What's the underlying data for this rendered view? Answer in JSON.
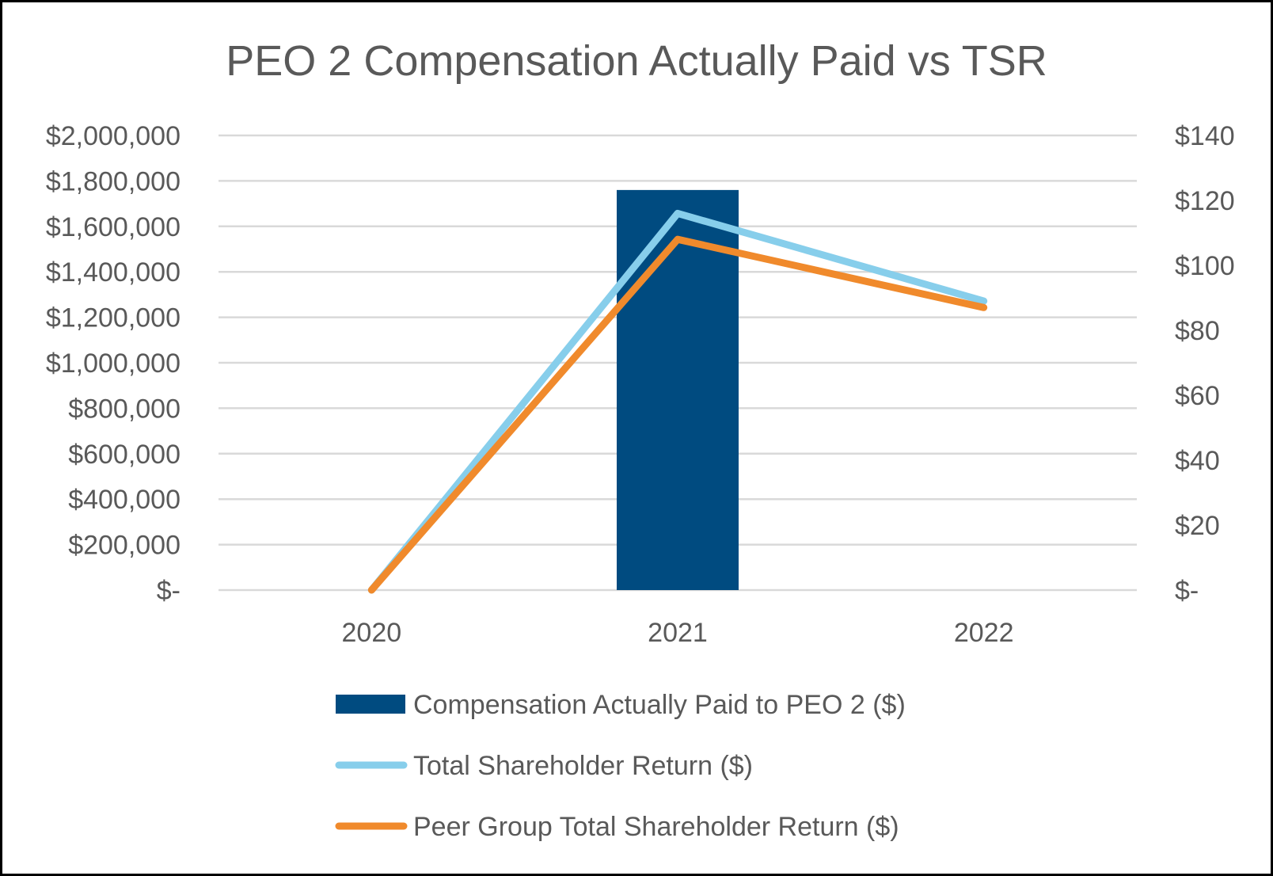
{
  "chart_data": {
    "type": "bar",
    "title": "PEO 2 Compensation Actually Paid  vs TSR",
    "categories": [
      "2020",
      "2021",
      "2022"
    ],
    "series": [
      {
        "name": "Compensation Actually Paid to PEO 2 ($)",
        "kind": "bar",
        "axis": "left",
        "color": "#004B80",
        "values": [
          0,
          1760000,
          0
        ]
      },
      {
        "name": "Total Shareholder Return ($)",
        "kind": "line",
        "axis": "right",
        "color": "#87CEEB",
        "values": [
          0,
          116,
          89
        ]
      },
      {
        "name": "Peer Group Total Shareholder Return ($)",
        "kind": "line",
        "axis": "right",
        "color": "#F08A2C",
        "values": [
          0,
          108,
          87
        ]
      }
    ],
    "y_left": {
      "min": 0,
      "max": 2000000,
      "ticks": [
        2000000,
        1800000,
        1600000,
        1400000,
        1200000,
        1000000,
        800000,
        600000,
        400000,
        200000,
        0
      ],
      "tick_labels": [
        "$2,000,000",
        "$1,800,000",
        "$1,600,000",
        "$1,400,000",
        "$1,200,000",
        "$1,000,000",
        "$800,000",
        "$600,000",
        "$400,000",
        "$200,000",
        "$-"
      ]
    },
    "y_right": {
      "min": 0,
      "max": 140,
      "ticks": [
        140,
        120,
        100,
        80,
        60,
        40,
        20,
        0
      ],
      "tick_labels": [
        "$140",
        "$120",
        "$100",
        "$80",
        "$60",
        "$40",
        "$20",
        "$-"
      ]
    },
    "grid": true,
    "legend_position": "bottom"
  }
}
